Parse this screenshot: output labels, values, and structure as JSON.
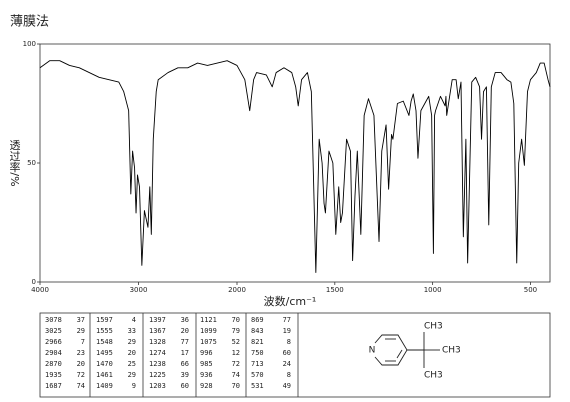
{
  "chart_data": {
    "type": "line",
    "title": "薄膜法",
    "xlabel": "波数/cm⁻¹",
    "ylabel": "透过率/%",
    "xlim": [
      4000,
      400
    ],
    "x_scale_break": 2000,
    "xticks": [
      4000,
      3000,
      2000,
      1500,
      1000,
      500
    ],
    "ylim": [
      0,
      100
    ],
    "yticks": [
      0,
      50,
      100
    ],
    "x": [
      4000,
      3900,
      3800,
      3700,
      3600,
      3500,
      3400,
      3300,
      3200,
      3150,
      3100,
      3078,
      3060,
      3040,
      3025,
      3010,
      2990,
      2966,
      2940,
      2904,
      2885,
      2870,
      2850,
      2820,
      2800,
      2700,
      2600,
      2500,
      2400,
      2300,
      2200,
      2100,
      2050,
      2000,
      1980,
      1960,
      1935,
      1915,
      1900,
      1850,
      1820,
      1800,
      1760,
      1720,
      1700,
      1687,
      1670,
      1640,
      1620,
      1597,
      1580,
      1565,
      1555,
      1548,
      1530,
      1510,
      1495,
      1480,
      1470,
      1461,
      1440,
      1420,
      1409,
      1397,
      1385,
      1367,
      1350,
      1328,
      1300,
      1274,
      1260,
      1238,
      1225,
      1210,
      1203,
      1180,
      1150,
      1121,
      1110,
      1099,
      1085,
      1075,
      1060,
      1040,
      1020,
      1005,
      996,
      990,
      985,
      960,
      936,
      932,
      928,
      900,
      880,
      869,
      855,
      843,
      830,
      821,
      800,
      780,
      760,
      750,
      740,
      725,
      713,
      700,
      680,
      650,
      620,
      600,
      585,
      570,
      560,
      545,
      531,
      515,
      500,
      470,
      450,
      430,
      410,
      400
    ],
    "series": [
      {
        "color": "#000000",
        "values": [
          90,
          93,
          93,
          91,
          90,
          88,
          86,
          85,
          84,
          80,
          72,
          37,
          55,
          48,
          29,
          45,
          40,
          7,
          30,
          23,
          40,
          20,
          60,
          80,
          85,
          88,
          90,
          90,
          92,
          91,
          92,
          93,
          92,
          91,
          88,
          85,
          72,
          85,
          88,
          87,
          82,
          88,
          90,
          88,
          82,
          74,
          85,
          88,
          80,
          4,
          60,
          50,
          33,
          29,
          55,
          50,
          20,
          40,
          25,
          29,
          60,
          55,
          9,
          36,
          55,
          20,
          70,
          77,
          70,
          17,
          55,
          66,
          39,
          62,
          60,
          75,
          76,
          70,
          76,
          79,
          72,
          52,
          72,
          75,
          78,
          70,
          12,
          70,
          72,
          78,
          74,
          78,
          70,
          85,
          85,
          77,
          84,
          19,
          60,
          8,
          84,
          86,
          82,
          60,
          80,
          82,
          24,
          82,
          88,
          88,
          85,
          84,
          75,
          8,
          50,
          60,
          49,
          80,
          85,
          88,
          92,
          92,
          85,
          82
        ]
      }
    ]
  },
  "peak_table": {
    "columns": [
      [
        [
          3078,
          37
        ],
        [
          3025,
          29
        ],
        [
          2966,
          7
        ],
        [
          2904,
          23
        ],
        [
          2870,
          20
        ],
        [
          1935,
          72
        ],
        [
          1687,
          74
        ]
      ],
      [
        [
          1597,
          4
        ],
        [
          1555,
          33
        ],
        [
          1548,
          29
        ],
        [
          1495,
          20
        ],
        [
          1470,
          25
        ],
        [
          1461,
          29
        ],
        [
          1409,
          9
        ]
      ],
      [
        [
          1397,
          36
        ],
        [
          1367,
          20
        ],
        [
          1328,
          77
        ],
        [
          1274,
          17
        ],
        [
          1238,
          66
        ],
        [
          1225,
          39
        ],
        [
          1203,
          60
        ]
      ],
      [
        [
          1121,
          70
        ],
        [
          1099,
          79
        ],
        [
          1075,
          52
        ],
        [
          996,
          12
        ],
        [
          985,
          72
        ],
        [
          936,
          74
        ],
        [
          928,
          70
        ]
      ],
      [
        [
          869,
          77
        ],
        [
          843,
          19
        ],
        [
          821,
          8
        ],
        [
          750,
          60
        ],
        [
          713,
          24
        ],
        [
          570,
          8
        ],
        [
          531,
          49
        ]
      ]
    ]
  },
  "structure": {
    "ring_atom": "N",
    "methyl_groups": [
      "CH3",
      "CH3",
      "CH3"
    ]
  }
}
